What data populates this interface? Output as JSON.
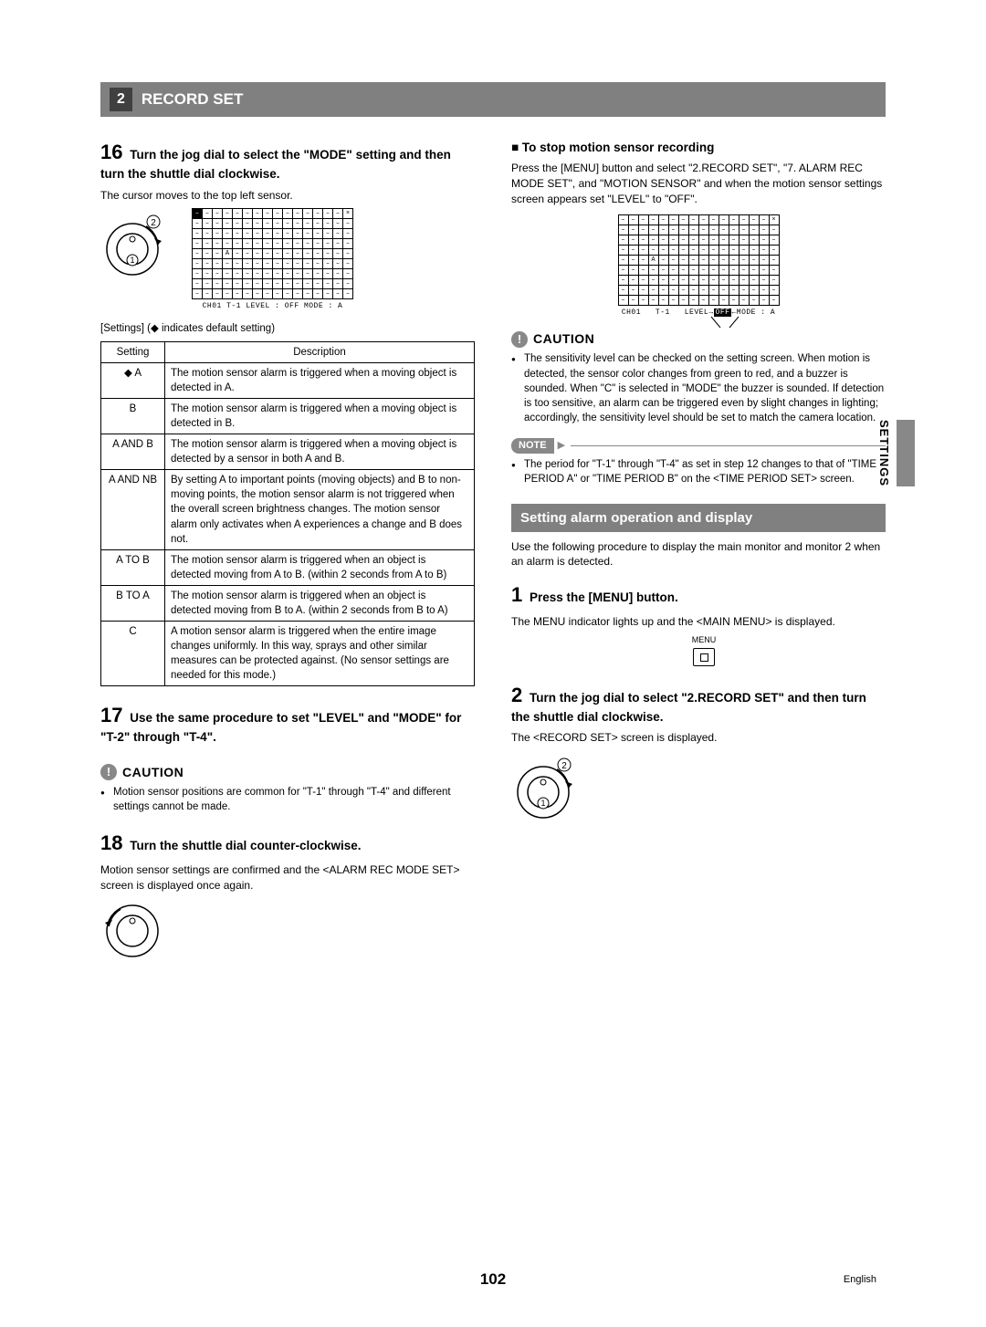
{
  "header": {
    "num": "2",
    "title": "RECORD SET"
  },
  "sideTab": "SETTINGS",
  "pageNum": "102",
  "lang": "English",
  "left": {
    "step16": {
      "num": "16",
      "text": "Turn the jog dial to select the \"MODE\" setting and then turn the shuttle dial clockwise.",
      "caption": "The cursor moves to the top left sensor."
    },
    "gridFooter": "CH01   T-1   LEVEL : OFF   MODE : A",
    "tableCaption": "[Settings] (◆ indicates default setting)",
    "tableHead": {
      "c1": "Setting",
      "c2": "Description"
    },
    "rows": [
      {
        "s": "◆ A",
        "d": "The motion sensor alarm is triggered when a moving object is detected in A."
      },
      {
        "s": "B",
        "d": "The motion sensor alarm is triggered when a moving object is detected in B."
      },
      {
        "s": "A AND B",
        "d": "The motion sensor alarm is triggered when a moving object is detected by a sensor in both A and B."
      },
      {
        "s": "A AND NB",
        "d": "By setting A to important points (moving objects) and B to non-moving points, the motion sensor alarm is not triggered when the overall screen brightness changes. The motion sensor alarm only activates when A experiences a change and B does not."
      },
      {
        "s": "A TO B",
        "d": "The motion sensor alarm is triggered when an object is detected moving from A to B. (within 2 seconds from A to B)"
      },
      {
        "s": "B TO A",
        "d": "The motion sensor alarm is triggered when an object is detected moving from B to A. (within 2 seconds from B to A)"
      },
      {
        "s": "C",
        "d": "A motion sensor alarm is triggered when the entire image changes uniformly. In this way, sprays and other similar measures can be protected against. (No sensor settings are needed for this mode.)"
      }
    ],
    "step17": {
      "num": "17",
      "text": "Use the same procedure to set \"LEVEL\" and \"MODE\" for \"T-2\" through \"T-4\"."
    },
    "caution": "CAUTION",
    "cautionBullets": [
      "Motion sensor positions are common for \"T-1\" through \"T-4\" and different settings cannot be made."
    ],
    "step18": {
      "num": "18",
      "text": "Turn the shuttle dial counter-clockwise.",
      "caption": "Motion sensor settings are confirmed and the <ALARM REC MODE SET> screen is displayed once again."
    }
  },
  "right": {
    "stopHead": "To stop motion sensor recording",
    "stopBody": "Press the [MENU] button and select \"2.RECORD SET\", \"7. ALARM REC MODE SET\", and \"MOTION SENSOR\" and when the motion sensor settings screen appears set \"LEVEL\" to \"OFF\".",
    "gridFooter": "CH01   T-1   LEVEL  OFF   MODE : A",
    "caution": "CAUTION",
    "cautionBullets": [
      "The sensitivity level can be checked on the setting screen. When motion is detected, the sensor color changes from green to red, and a buzzer is sounded. When \"C\" is selected in \"MODE\" the buzzer is sounded. If detection is too sensitive, an alarm can be triggered even by slight changes in lighting; accordingly, the sensitivity level should be set to match the camera location."
    ],
    "noteLabel": "NOTE",
    "noteBullets": [
      "The period for \"T-1\" through \"T-4\" as set in step 12 changes to that of \"TIME PERIOD A\" or \"TIME PERIOD B\" on the <TIME PERIOD SET> screen."
    ],
    "sectionTitle": "Setting alarm operation and display",
    "sectionIntro": "Use the following procedure to display the main monitor and monitor 2 when an alarm is detected.",
    "step1": {
      "num": "1",
      "text": "Press the [MENU] button.",
      "caption": "The MENU indicator lights up and the <MAIN MENU> is displayed.",
      "btnLabel": "MENU"
    },
    "step2": {
      "num": "2",
      "text": "Turn the jog dial to select \"2.RECORD SET\" and then turn the shuttle dial clockwise.",
      "caption": "The <RECORD SET> screen is displayed."
    }
  },
  "sensorGrid": {
    "rows": 9,
    "cols": 16,
    "markA": {
      "r": 4,
      "c": 3
    },
    "markX": {
      "r": 0,
      "c": 15
    }
  }
}
